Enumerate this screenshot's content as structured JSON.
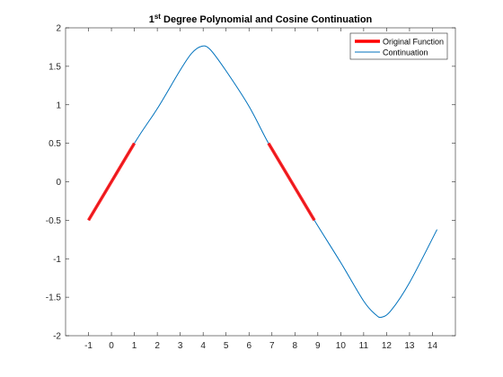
{
  "chart_data": {
    "type": "line",
    "title": {
      "prefix": "1",
      "superscript": "st",
      "rest": " Degree Polynomial and Cosine Continuation"
    },
    "xlabel": "",
    "ylabel": "",
    "xlim": [
      -2,
      15
    ],
    "ylim": [
      -2,
      2
    ],
    "x_ticks": [
      -1,
      0,
      1,
      2,
      3,
      4,
      5,
      6,
      7,
      8,
      9,
      10,
      11,
      12,
      13,
      14
    ],
    "y_ticks": [
      -2,
      -1.5,
      -1,
      -0.5,
      0,
      0.5,
      1,
      1.5,
      2
    ],
    "grid": false,
    "legend_position": "top-right",
    "series": [
      {
        "name": "Original Function",
        "color": "#ff0000",
        "style": "thick",
        "segments": [
          {
            "x": [
              -1,
              1
            ],
            "y": [
              -0.5,
              0.5
            ]
          },
          {
            "x": [
              6.85,
              8.85
            ],
            "y": [
              0.5,
              -0.5
            ]
          }
        ]
      },
      {
        "name": "Continuation",
        "color": "#0072bd",
        "style": "thin",
        "x": [
          -1,
          1,
          2,
          3,
          3.5,
          3.93,
          4.3,
          5,
          6,
          6.85,
          7.85,
          8.85,
          10,
          11,
          11.5,
          11.78,
          12.2,
          13,
          14.2
        ],
        "y": [
          -0.5,
          0.5,
          0.95,
          1.45,
          1.67,
          1.76,
          1.72,
          1.44,
          0.98,
          0.5,
          0,
          -0.5,
          -1.05,
          -1.55,
          -1.72,
          -1.76,
          -1.67,
          -1.31,
          -0.62
        ]
      }
    ]
  }
}
